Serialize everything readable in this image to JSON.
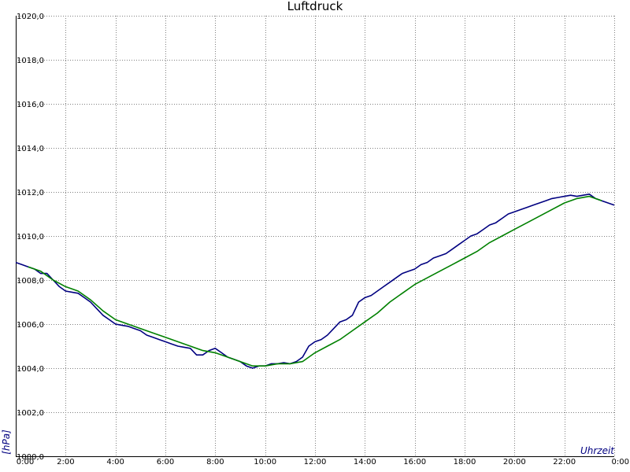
{
  "chart_data": {
    "type": "line",
    "title": "Luftdruck",
    "xlabel": "Uhrzeit",
    "ylabel": "[hPa]",
    "xlim": [
      0,
      24
    ],
    "ylim": [
      1000,
      1020
    ],
    "grid": true,
    "x_tick_labels": [
      "0:00",
      "2:00",
      "4:00",
      "6:00",
      "8:00",
      "10:00",
      "12:00",
      "14:00",
      "16:00",
      "18:00",
      "20:00",
      "22:00",
      "0:00"
    ],
    "y_tick_labels": [
      "1000,0",
      "1002,0",
      "1004,0",
      "1006,0",
      "1008,0",
      "1010,0",
      "1012,0",
      "1014,0",
      "1016,0",
      "1018,0",
      "1020,0"
    ],
    "series": [
      {
        "color": "#000080",
        "x": [
          0.0,
          0.25,
          0.5,
          0.75,
          1.0,
          1.25,
          1.5,
          1.75,
          2.0,
          2.25,
          2.5,
          2.75,
          3.0,
          3.25,
          3.5,
          3.75,
          4.0,
          4.25,
          4.5,
          4.75,
          5.0,
          5.25,
          5.5,
          5.75,
          6.0,
          6.25,
          6.5,
          6.75,
          7.0,
          7.25,
          7.5,
          7.75,
          8.0,
          8.25,
          8.5,
          8.75,
          9.0,
          9.25,
          9.5,
          9.75,
          10.0,
          10.25,
          10.5,
          10.75,
          11.0,
          11.25,
          11.5,
          11.75,
          12.0,
          12.25,
          12.5,
          12.75,
          13.0,
          13.25,
          13.5,
          13.75,
          14.0,
          14.25,
          14.5,
          14.75,
          15.0,
          15.25,
          15.5,
          15.75,
          16.0,
          16.25,
          16.5,
          16.75,
          17.0,
          17.25,
          17.5,
          17.75,
          18.0,
          18.25,
          18.5,
          18.75,
          19.0,
          19.25,
          19.5,
          19.75,
          20.0,
          20.25,
          20.5,
          20.75,
          21.0,
          21.25,
          21.5,
          21.75,
          22.0,
          22.25,
          22.5,
          22.75,
          23.0,
          23.25,
          23.5,
          23.75,
          24.0
        ],
        "values": [
          1008.8,
          1008.7,
          1008.6,
          1008.5,
          1008.3,
          1008.3,
          1008.0,
          1007.7,
          1007.5,
          1007.45,
          1007.4,
          1007.2,
          1007.0,
          1006.7,
          1006.4,
          1006.2,
          1006.0,
          1005.95,
          1005.9,
          1005.8,
          1005.7,
          1005.5,
          1005.4,
          1005.3,
          1005.2,
          1005.1,
          1005.0,
          1004.95,
          1004.9,
          1004.6,
          1004.6,
          1004.8,
          1004.9,
          1004.7,
          1004.5,
          1004.4,
          1004.3,
          1004.1,
          1004.0,
          1004.1,
          1004.1,
          1004.2,
          1004.2,
          1004.25,
          1004.2,
          1004.3,
          1004.5,
          1005.0,
          1005.2,
          1005.3,
          1005.5,
          1005.8,
          1006.1,
          1006.2,
          1006.4,
          1007.0,
          1007.2,
          1007.3,
          1007.5,
          1007.7,
          1007.9,
          1008.1,
          1008.3,
          1008.4,
          1008.5,
          1008.7,
          1008.8,
          1009.0,
          1009.1,
          1009.2,
          1009.4,
          1009.6,
          1009.8,
          1010.0,
          1010.1,
          1010.3,
          1010.5,
          1010.6,
          1010.8,
          1011.0,
          1011.1,
          1011.2,
          1011.3,
          1011.4,
          1011.5,
          1011.6,
          1011.7,
          1011.75,
          1011.8,
          1011.85,
          1011.8,
          1011.85,
          1011.9,
          1011.7,
          1011.6,
          1011.5,
          1011.4
        ]
      },
      {
        "color": "#008000",
        "x": [
          0.5,
          1.0,
          1.5,
          2.0,
          2.5,
          3.0,
          3.5,
          4.0,
          4.5,
          5.0,
          5.5,
          6.0,
          6.5,
          7.0,
          7.5,
          8.0,
          8.5,
          9.0,
          9.5,
          10.0,
          10.5,
          11.0,
          11.5,
          12.0,
          12.5,
          13.0,
          13.5,
          14.0,
          14.5,
          15.0,
          15.5,
          16.0,
          16.5,
          17.0,
          17.5,
          18.0,
          18.5,
          19.0,
          19.5,
          20.0,
          20.5,
          21.0,
          21.5,
          22.0,
          22.5,
          23.0,
          23.5
        ],
        "values": [
          1008.6,
          1008.4,
          1008.0,
          1007.7,
          1007.5,
          1007.1,
          1006.6,
          1006.2,
          1006.0,
          1005.8,
          1005.6,
          1005.4,
          1005.2,
          1005.0,
          1004.8,
          1004.7,
          1004.5,
          1004.3,
          1004.1,
          1004.1,
          1004.2,
          1004.2,
          1004.3,
          1004.7,
          1005.0,
          1005.3,
          1005.7,
          1006.1,
          1006.5,
          1007.0,
          1007.4,
          1007.8,
          1008.1,
          1008.4,
          1008.7,
          1009.0,
          1009.3,
          1009.7,
          1010.0,
          1010.3,
          1010.6,
          1010.9,
          1011.2,
          1011.5,
          1011.7,
          1011.8,
          1011.6
        ]
      }
    ]
  }
}
